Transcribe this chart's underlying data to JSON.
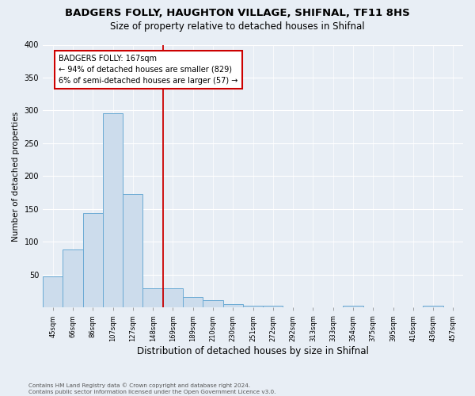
{
  "title": "BADGERS FOLLY, HAUGHTON VILLAGE, SHIFNAL, TF11 8HS",
  "subtitle": "Size of property relative to detached houses in Shifnal",
  "xlabel": "Distribution of detached houses by size in Shifnal",
  "ylabel": "Number of detached properties",
  "footer": "Contains HM Land Registry data © Crown copyright and database right 2024.\nContains public sector information licensed under the Open Government Licence v3.0.",
  "categories": [
    "45sqm",
    "66sqm",
    "86sqm",
    "107sqm",
    "127sqm",
    "148sqm",
    "169sqm",
    "189sqm",
    "210sqm",
    "230sqm",
    "251sqm",
    "272sqm",
    "292sqm",
    "313sqm",
    "333sqm",
    "354sqm",
    "375sqm",
    "395sqm",
    "416sqm",
    "436sqm",
    "457sqm"
  ],
  "values": [
    47,
    88,
    144,
    296,
    173,
    30,
    30,
    16,
    11,
    5,
    3,
    3,
    0,
    0,
    0,
    3,
    0,
    0,
    0,
    3,
    0
  ],
  "bar_color": "#ccdcec",
  "bar_edge_color": "#6aaad4",
  "property_line_color": "#cc0000",
  "annotation_text": "BADGERS FOLLY: 167sqm\n← 94% of detached houses are smaller (829)\n6% of semi-detached houses are larger (57) →",
  "annotation_box_color": "white",
  "annotation_box_edge_color": "#cc0000",
  "ylim": [
    0,
    400
  ],
  "yticks": [
    0,
    50,
    100,
    150,
    200,
    250,
    300,
    350,
    400
  ],
  "background_color": "#e8eef5",
  "plot_background_color": "#e8eef5",
  "title_fontsize": 9.5,
  "subtitle_fontsize": 8.5,
  "xlabel_fontsize": 8.5,
  "ylabel_fontsize": 7.5
}
